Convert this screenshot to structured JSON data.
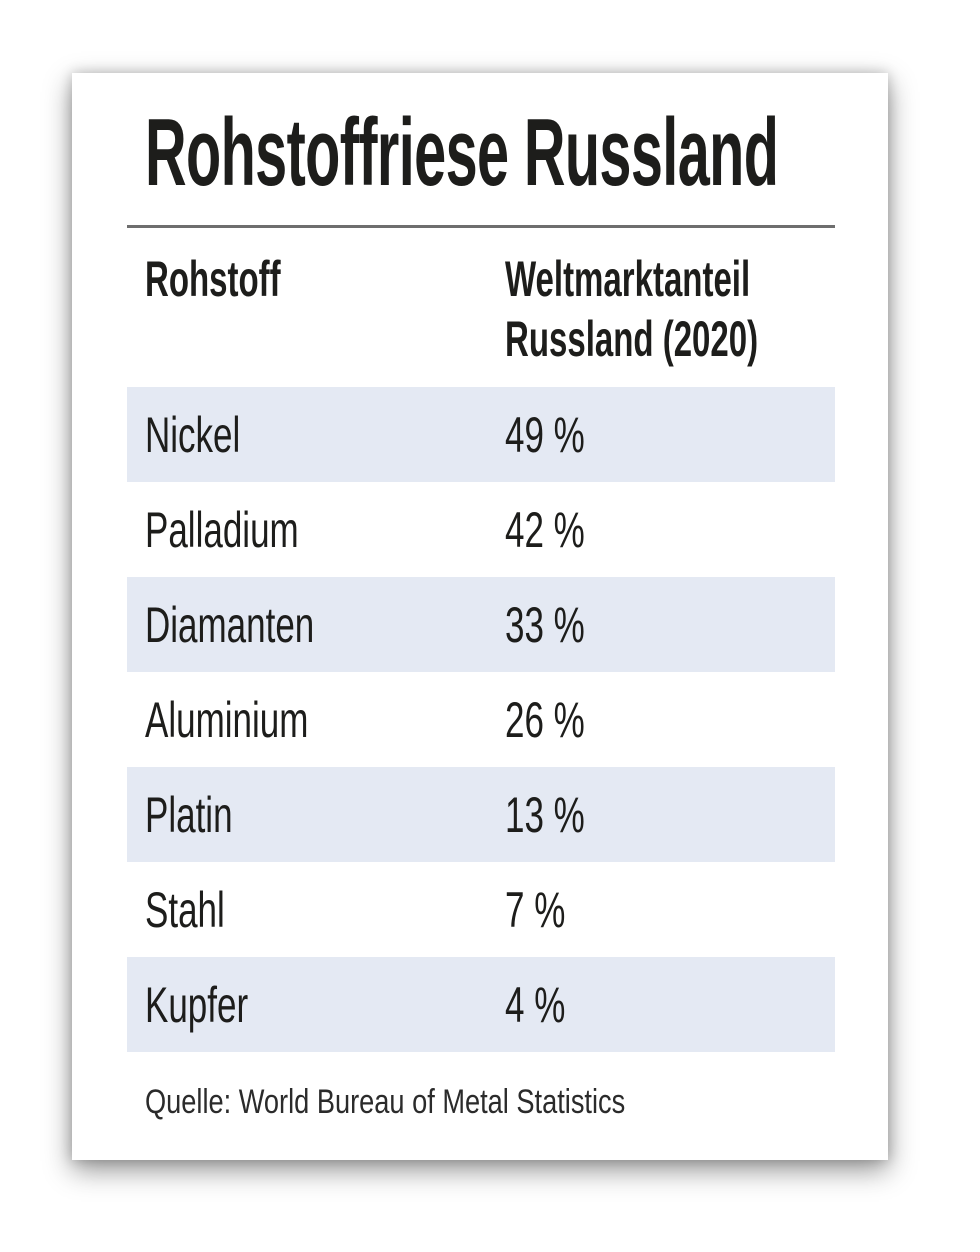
{
  "card": {
    "title": "Rohstoffriese Russland",
    "table": {
      "col1_header": "Rohstoff",
      "col2_header_line1": "Weltmarktanteil",
      "col2_header_line2": "Russland (2020)",
      "rows": [
        {
          "material": "Nickel",
          "share": "49 %"
        },
        {
          "material": "Palladium",
          "share": "42 %"
        },
        {
          "material": "Diamanten",
          "share": "33 %"
        },
        {
          "material": "Aluminium",
          "share": "26 %"
        },
        {
          "material": "Platin",
          "share": "13 %"
        },
        {
          "material": "Stahl",
          "share": "7 %"
        },
        {
          "material": "Kupfer",
          "share": "4 %"
        }
      ]
    },
    "source": "Quelle: World Bureau of Metal Statistics"
  },
  "colors": {
    "row_band": "#e4e9f3",
    "text": "#1d1d1b",
    "divider": "#6e6e6e",
    "card_background": "#ffffff"
  },
  "chart_data": {
    "type": "table",
    "title": "Rohstoffriese Russland",
    "columns": [
      "Rohstoff",
      "Weltmarktanteil Russland (2020)"
    ],
    "categories": [
      "Nickel",
      "Palladium",
      "Diamanten",
      "Aluminium",
      "Platin",
      "Stahl",
      "Kupfer"
    ],
    "values": [
      49,
      42,
      33,
      26,
      13,
      7,
      4
    ],
    "unit": "%",
    "source": "Quelle: World Bureau of Metal Statistics",
    "layout_hints": {
      "alternating_row_shading": true,
      "shaded_rows": [
        0,
        2,
        4,
        6
      ]
    }
  }
}
